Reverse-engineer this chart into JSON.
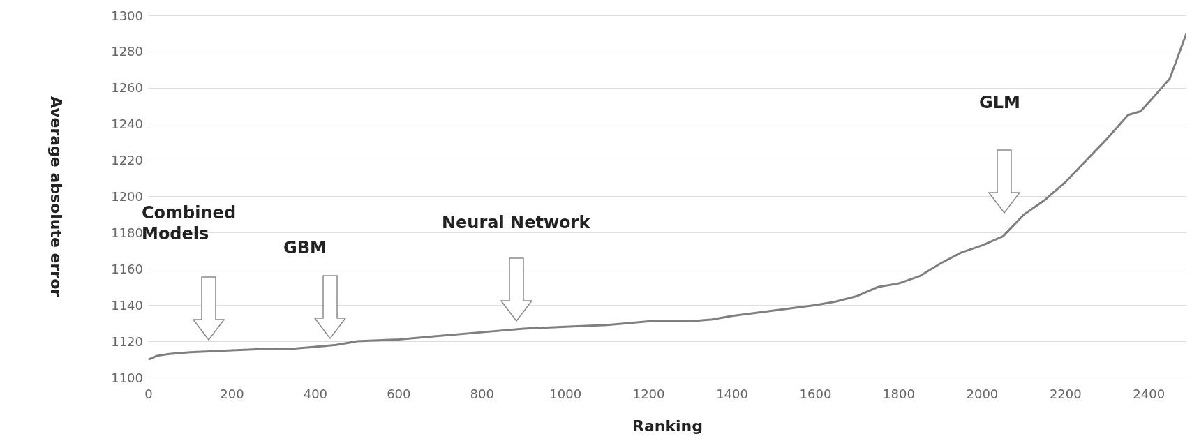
{
  "chart_data": {
    "type": "line",
    "xlabel": "Ranking",
    "ylabel": "Average absolute error",
    "x": [
      0,
      20,
      50,
      100,
      200,
      300,
      350,
      400,
      450,
      500,
      600,
      700,
      800,
      900,
      1000,
      1100,
      1200,
      1300,
      1350,
      1400,
      1500,
      1600,
      1650,
      1700,
      1750,
      1800,
      1850,
      1900,
      1950,
      2000,
      2050,
      2100,
      2150,
      2200,
      2250,
      2300,
      2350,
      2380,
      2400,
      2450,
      2490
    ],
    "series": [
      {
        "color": "#7f7f7f",
        "values": [
          1110,
          1112,
          1113,
          1114,
          1115,
          1116,
          1116,
          1117,
          1118,
          1120,
          1121,
          1123,
          1125,
          1127,
          1128,
          1129,
          1131,
          1131,
          1132,
          1134,
          1137,
          1140,
          1142,
          1145,
          1150,
          1152,
          1156,
          1163,
          1169,
          1173,
          1178,
          1190,
          1198,
          1208,
          1220,
          1232,
          1245,
          1247,
          1252,
          1265,
          1290
        ]
      }
    ],
    "xlim": [
      0,
      2490
    ],
    "xticks": [
      0,
      200,
      400,
      600,
      800,
      1000,
      1200,
      1400,
      1600,
      1800,
      2000,
      2200,
      2400
    ],
    "ylim": [
      1100,
      1300
    ],
    "yticks": [
      1100,
      1120,
      1140,
      1160,
      1180,
      1200,
      1220,
      1240,
      1260,
      1280,
      1300
    ],
    "grid": "y",
    "marker": "none",
    "line_style": "solid",
    "annotations": [
      "Combined Models",
      "GBM",
      "Neural Network",
      "GLM"
    ]
  }
}
